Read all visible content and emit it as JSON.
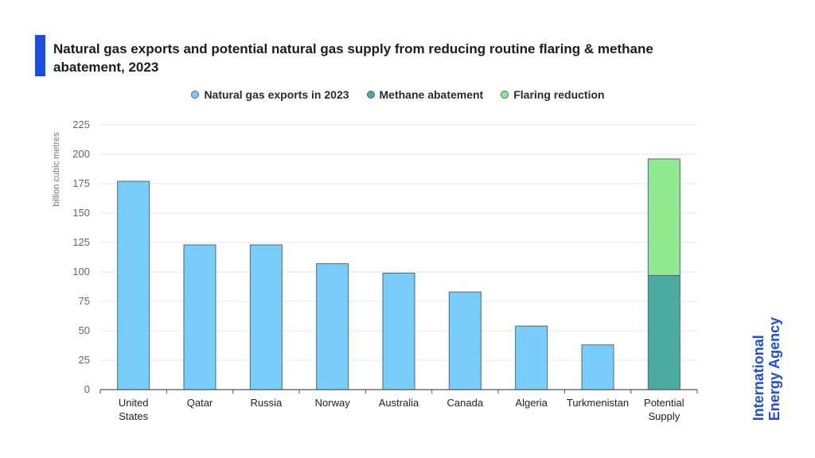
{
  "title": "Natural gas exports and potential natural gas supply from reducing routine flaring & methane abatement, 2023",
  "legend": [
    {
      "label": "Natural gas exports in 2023",
      "color": "#79cdf9"
    },
    {
      "label": "Methane abatement",
      "color": "#4aab9e"
    },
    {
      "label": "Flaring reduction",
      "color": "#92ea90"
    }
  ],
  "brand": {
    "line1": "International",
    "line2": "Energy Agency",
    "color": "#1d4ee0"
  },
  "colors": {
    "accent": "#1d4ee0",
    "axis": "#555555",
    "grid": "#e6e6e6",
    "bar_border": "#4a6b7c"
  },
  "chart_data": {
    "type": "bar",
    "stacked": true,
    "categories": [
      "United States",
      "Qatar",
      "Russia",
      "Norway",
      "Australia",
      "Canada",
      "Algeria",
      "Turkmenistan",
      "Potential Supply"
    ],
    "category_lines": [
      [
        "United",
        "States"
      ],
      [
        "Qatar"
      ],
      [
        "Russia"
      ],
      [
        "Norway"
      ],
      [
        "Australia"
      ],
      [
        "Canada"
      ],
      [
        "Algeria"
      ],
      [
        "Turkmenistan"
      ],
      [
        "Potential",
        "Supply"
      ]
    ],
    "series": [
      {
        "name": "Natural gas exports in 2023",
        "values": [
          177,
          123,
          123,
          107,
          99,
          83,
          54,
          38,
          0
        ]
      },
      {
        "name": "Methane abatement",
        "values": [
          0,
          0,
          0,
          0,
          0,
          0,
          0,
          0,
          97
        ]
      },
      {
        "name": "Flaring reduction",
        "values": [
          0,
          0,
          0,
          0,
          0,
          0,
          0,
          0,
          99
        ]
      }
    ],
    "ylabel": "billion cubic metres",
    "ylim": [
      0,
      225
    ],
    "yticks": [
      0,
      25,
      50,
      75,
      100,
      125,
      150,
      175,
      200,
      225
    ],
    "grid": true,
    "legend_position": "top"
  }
}
